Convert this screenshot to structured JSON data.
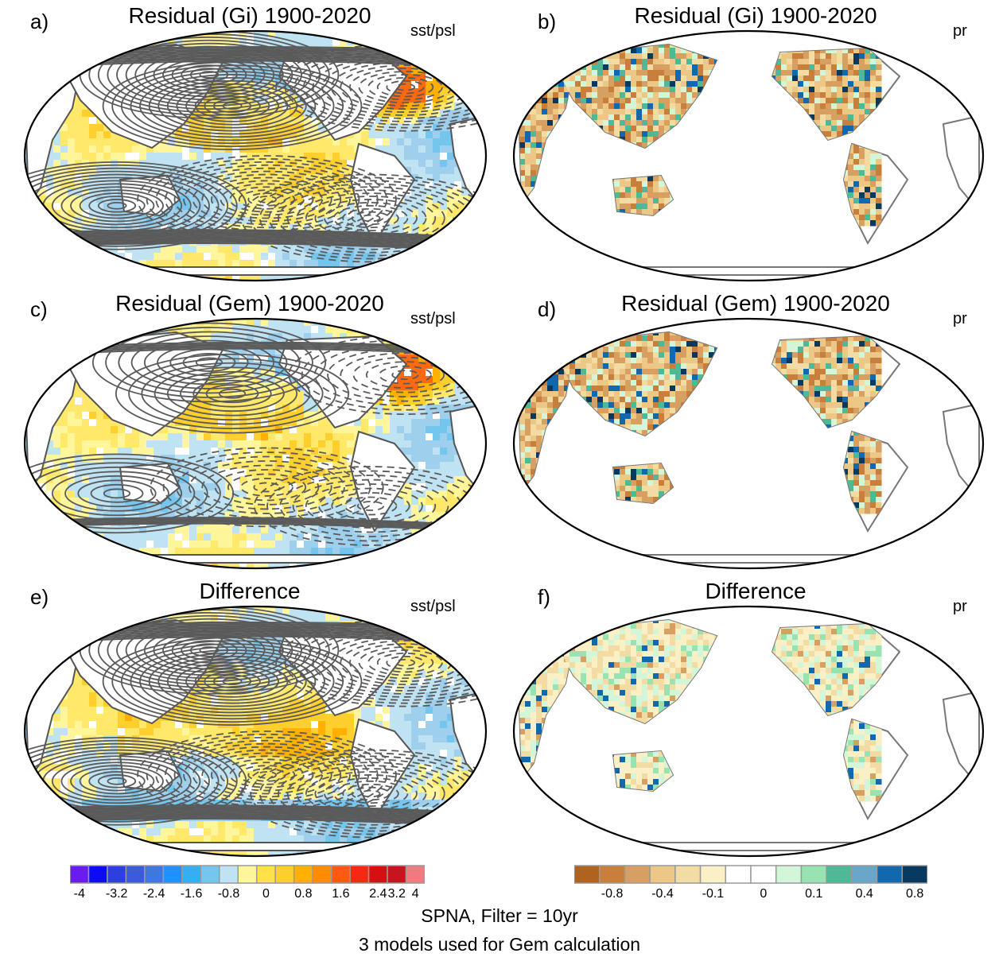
{
  "panels": [
    {
      "letter": "a)",
      "title": "Residual (Gi) 1900-2020",
      "variable": "sst/psl",
      "field": "sst",
      "contours": "dense"
    },
    {
      "letter": "b)",
      "title": "Residual (Gi) 1900-2020",
      "variable": "pr",
      "field": "pr"
    },
    {
      "letter": "c)",
      "title": "Residual (Gem) 1900-2020",
      "variable": "sst/psl",
      "field": "sst",
      "contours": "medium"
    },
    {
      "letter": "d)",
      "title": "Residual (Gem) 1900-2020",
      "variable": "pr",
      "field": "pr"
    },
    {
      "letter": "e)",
      "title": "Difference",
      "variable": "sst/psl",
      "field": "sst_diff",
      "contours": "dense"
    },
    {
      "letter": "f)",
      "title": "Difference",
      "variable": "pr",
      "field": "pr_diff"
    }
  ],
  "colorbars": {
    "sst": {
      "colors": [
        "#6a1bf0",
        "#0b0bf5",
        "#2e3fe0",
        "#3b5bdb",
        "#3c78e0",
        "#1e90ff",
        "#33b0f2",
        "#74c6ee",
        "#bfe3f3",
        "#fff59a",
        "#ffe14a",
        "#ffcf2e",
        "#ffb000",
        "#ff8c00",
        "#ff5a10",
        "#f22a10",
        "#d80f10",
        "#c8141e",
        "#ef7a7f"
      ],
      "labels": [
        "-4",
        "-3.2",
        "-2.4",
        "-1.6",
        "-0.8",
        "0",
        "0.8",
        "1.6",
        "2.4",
        "3.2",
        "4"
      ],
      "label_index": [
        1,
        3,
        5,
        7,
        9,
        11,
        13,
        15,
        17,
        18,
        19
      ]
    },
    "pr": {
      "colors": [
        "#b0621f",
        "#c87f3c",
        "#d8a060",
        "#ecc785",
        "#f3dba4",
        "#fbefc6",
        "#ffffff",
        "#ffffff",
        "#d3f6d8",
        "#98e3b1",
        "#4fb897",
        "#6aa6c8",
        "#1268ad",
        "#073a5e"
      ],
      "labels": [
        "-0.8",
        "-0.4",
        "-0.1",
        "0",
        "0.1",
        "0.4",
        "0.8"
      ],
      "label_index": [
        2,
        4,
        6,
        8,
        10,
        12,
        14
      ]
    }
  },
  "footer": {
    "line1": "SPNA, Filter = 10yr",
    "line2": "3 models used for Gem calculation"
  },
  "chart_data": {
    "type": "heatmap",
    "description_of_panels": [
      "a",
      "b",
      "c",
      "d",
      "e",
      "f"
    ],
    "sst_colorbar_ticks": [
      -4,
      -3.2,
      -2.4,
      -1.6,
      -0.8,
      0,
      0.8,
      1.6,
      2.4,
      3.2,
      4
    ],
    "pr_colorbar_ticks": [
      -0.8,
      -0.4,
      -0.1,
      0,
      0.1,
      0.4,
      0.8
    ],
    "titles": [
      "Residual (Gi) 1900-2020",
      "Residual (Gem) 1900-2020",
      "Difference"
    ]
  }
}
